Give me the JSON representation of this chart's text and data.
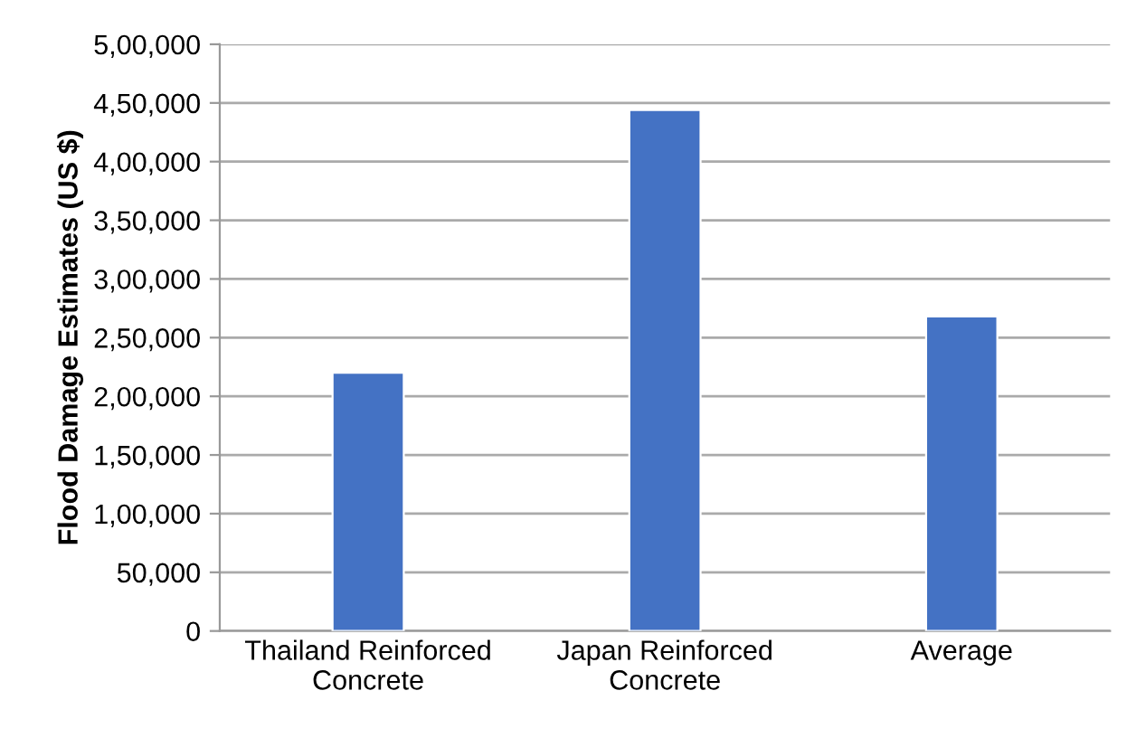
{
  "chart_data": {
    "type": "bar",
    "ylabel": "Flood Damage Estimates (US $)",
    "categories": [
      "Thailand Reinforced\nConcrete",
      "Japan Reinforced\nConcrete",
      "Average"
    ],
    "values": [
      220000,
      444000,
      268000
    ],
    "color": "#4472c4",
    "ylim": [
      0,
      500000
    ],
    "yticks": [
      0,
      {
        "value": 50000,
        "label": "50,000"
      },
      {
        "value": 100000,
        "label": "1,00,000"
      },
      {
        "value": 150000,
        "label": "1,50,000"
      },
      {
        "value": 200000,
        "label": "2,00,000"
      },
      {
        "value": 250000,
        "label": "2,50,000"
      },
      {
        "value": 300000,
        "label": "3,00,000"
      },
      {
        "value": 350000,
        "label": "3,50,000"
      },
      {
        "value": 400000,
        "label": "4,00,000"
      },
      {
        "value": 450000,
        "label": "4,50,000"
      },
      {
        "value": 500000,
        "label": "5,00,000"
      }
    ],
    "grid": "y",
    "legend": false
  }
}
